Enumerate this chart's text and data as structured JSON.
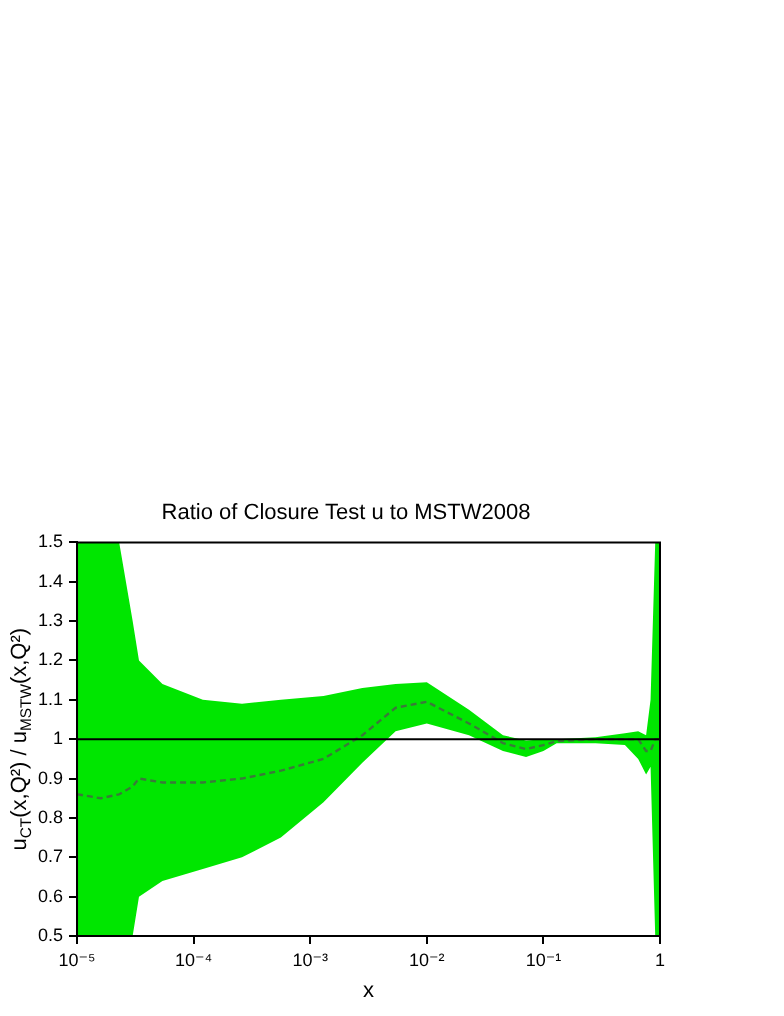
{
  "chart_data": {
    "type": "line",
    "title": "Ratio of Closure Test u to MSTW2008",
    "xlabel": "x",
    "ylabel": "u$_{CT}$(x,Q²) / u$_{MSTW}$(x,Q²)",
    "x": [
      1e-05,
      1.6e-05,
      2.3e-05,
      3e-05,
      3.4e-05,
      5.4e-05,
      0.00012,
      0.00026,
      0.00056,
      0.0013,
      0.0028,
      0.0054,
      0.01,
      0.023,
      0.045,
      0.071,
      0.1,
      0.13,
      0.28,
      0.5,
      0.65,
      0.76,
      0.83,
      0.91,
      1
    ],
    "series": [
      {
        "color": "#3a7a3a",
        "line_style": "dashed",
        "values": [
          0.86,
          0.85,
          0.86,
          0.88,
          0.9,
          0.89,
          0.89,
          0.9,
          0.92,
          0.95,
          1.01,
          1.08,
          1.095,
          1.04,
          0.99,
          0.975,
          0.985,
          0.995,
          1.0,
          1.0,
          1.0,
          0.97,
          0.97,
          1.0,
          1.0
        ],
        "lower": [
          0.5,
          0.5,
          0.5,
          0.5,
          0.6,
          0.64,
          0.67,
          0.7,
          0.75,
          0.84,
          0.94,
          1.02,
          1.04,
          1.01,
          0.97,
          0.955,
          0.97,
          0.99,
          0.99,
          0.985,
          0.95,
          0.91,
          0.93,
          0.5,
          0.5
        ],
        "upper": [
          1.5,
          1.5,
          1.5,
          1.3,
          1.2,
          1.14,
          1.1,
          1.09,
          1.1,
          1.11,
          1.13,
          1.14,
          1.145,
          1.075,
          1.01,
          0.997,
          1.0,
          1.0,
          1.005,
          1.015,
          1.02,
          1.01,
          1.1,
          1.5,
          1.5
        ]
      }
    ],
    "log": "x",
    "xlim": [
      1e-05,
      1
    ],
    "ylim": [
      0.5,
      1.5
    ],
    "xticks": [
      {
        "value": 1e-05,
        "label": "10⁻⁵"
      },
      {
        "value": 0.0001,
        "label": "10⁻⁴"
      },
      {
        "value": 0.001,
        "label": "10⁻³"
      },
      {
        "value": 0.01,
        "label": "10⁻²"
      },
      {
        "value": 0.1,
        "label": "10⁻¹"
      },
      1
    ],
    "yticks": [
      0.5,
      0.6,
      0.7,
      0.8,
      0.9,
      1,
      1.1,
      1.2,
      1.3,
      1.4,
      1.5
    ],
    "ref_lines": [
      {
        "axis": "y",
        "value": 1,
        "color": "#000000"
      }
    ],
    "grid": false,
    "legend": false
  }
}
